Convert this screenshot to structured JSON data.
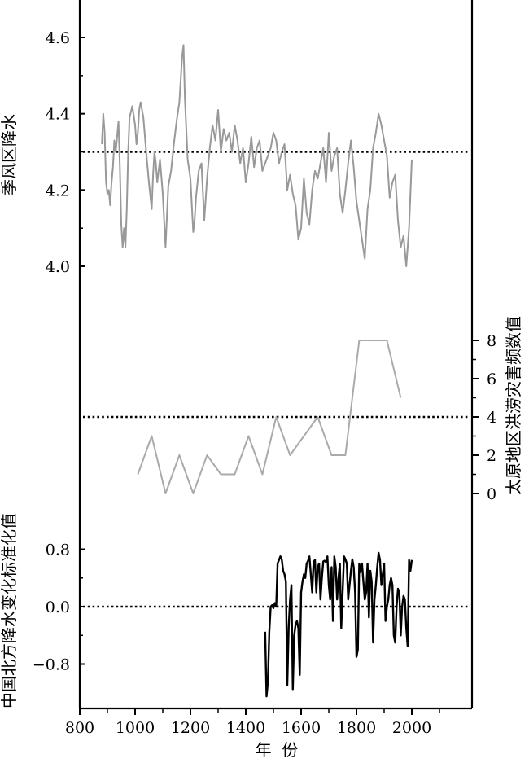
{
  "chart_data": [
    {
      "type": "line",
      "panel": "top",
      "ylabel": "季风区降水",
      "yticks": [
        "4.6",
        "4.4",
        "4.2",
        "4.0"
      ],
      "ylim": [
        4.0,
        4.6
      ],
      "reference_line": 4.3,
      "series": [
        {
          "color": "#999999",
          "x": [
            880,
            885,
            890,
            895,
            900,
            905,
            910,
            915,
            920,
            925,
            930,
            935,
            940,
            945,
            950,
            955,
            960,
            965,
            970,
            975,
            980,
            990,
            1000,
            1005,
            1010,
            1015,
            1020,
            1030,
            1040,
            1050,
            1060,
            1065,
            1070,
            1075,
            1080,
            1090,
            1100,
            1110,
            1120,
            1130,
            1140,
            1150,
            1160,
            1165,
            1170,
            1175,
            1180,
            1190,
            1200,
            1210,
            1215,
            1220,
            1230,
            1240,
            1250,
            1260,
            1270,
            1280,
            1290,
            1300,
            1310,
            1320,
            1330,
            1340,
            1350,
            1360,
            1370,
            1380,
            1390,
            1400,
            1410,
            1420,
            1430,
            1440,
            1450,
            1460,
            1470,
            1480,
            1490,
            1500,
            1510,
            1520,
            1530,
            1540,
            1550,
            1560,
            1570,
            1580,
            1590,
            1600,
            1610,
            1620,
            1630,
            1640,
            1650,
            1660,
            1670,
            1680,
            1690,
            1700,
            1710,
            1720,
            1730,
            1740,
            1750,
            1760,
            1770,
            1780,
            1790,
            1800,
            1810,
            1820,
            1830,
            1840,
            1850,
            1860,
            1870,
            1880,
            1890,
            1900,
            1910,
            1920,
            1930,
            1940,
            1950,
            1960,
            1970,
            1980,
            1990,
            2000
          ],
          "values": [
            4.32,
            4.4,
            4.35,
            4.22,
            4.19,
            4.2,
            4.16,
            4.22,
            4.26,
            4.33,
            4.3,
            4.34,
            4.38,
            4.26,
            4.11,
            4.05,
            4.1,
            4.05,
            4.15,
            4.3,
            4.39,
            4.42,
            4.37,
            4.32,
            4.35,
            4.41,
            4.43,
            4.39,
            4.3,
            4.22,
            4.15,
            4.24,
            4.3,
            4.27,
            4.22,
            4.28,
            4.19,
            4.05,
            4.21,
            4.25,
            4.32,
            4.38,
            4.43,
            4.49,
            4.55,
            4.58,
            4.44,
            4.28,
            4.23,
            4.09,
            4.12,
            4.18,
            4.25,
            4.27,
            4.12,
            4.23,
            4.31,
            4.37,
            4.33,
            4.41,
            4.3,
            4.36,
            4.33,
            4.35,
            4.3,
            4.37,
            4.33,
            4.27,
            4.31,
            4.22,
            4.27,
            4.34,
            4.26,
            4.31,
            4.33,
            4.25,
            4.27,
            4.29,
            4.31,
            4.35,
            4.33,
            4.27,
            4.3,
            4.32,
            4.2,
            4.24,
            4.19,
            4.16,
            4.07,
            4.1,
            4.23,
            4.14,
            4.11,
            4.2,
            4.25,
            4.23,
            4.27,
            4.31,
            4.22,
            4.35,
            4.25,
            4.29,
            4.31,
            4.19,
            4.14,
            4.2,
            4.27,
            4.33,
            4.26,
            4.17,
            4.12,
            4.07,
            4.02,
            4.15,
            4.2,
            4.31,
            4.35,
            4.4,
            4.37,
            4.33,
            4.29,
            4.18,
            4.22,
            4.24,
            4.12,
            4.05,
            4.08,
            4.0,
            4.1,
            4.28
          ]
        }
      ]
    },
    {
      "type": "line",
      "panel": "middle",
      "ylabel": "太原地区洪涝灾害频数值",
      "yticks": [
        "8",
        "6",
        "4",
        "2",
        "0"
      ],
      "ylim": [
        0,
        8
      ],
      "reference_line": 4,
      "series": [
        {
          "color": "#aaaaaa",
          "x": [
            1010,
            1060,
            1110,
            1160,
            1210,
            1260,
            1310,
            1360,
            1410,
            1460,
            1510,
            1560,
            1660,
            1710,
            1760,
            1810,
            1910,
            1960
          ],
          "values": [
            1,
            3,
            0,
            2,
            0,
            2,
            1,
            1,
            3,
            1,
            4,
            2,
            4,
            2,
            2,
            8,
            8,
            5
          ]
        }
      ]
    },
    {
      "type": "line",
      "panel": "bottom",
      "ylabel": "中国北方降水变化标准化值",
      "yticks": [
        "0.8",
        "0.0",
        "−0.8"
      ],
      "ylim": [
        -1.28,
        0.9
      ],
      "reference_line": 0.0,
      "series": [
        {
          "color": "#000000",
          "x": [
            1470,
            1475,
            1480,
            1485,
            1490,
            1495,
            1500,
            1505,
            1510,
            1515,
            1520,
            1525,
            1530,
            1535,
            1540,
            1545,
            1550,
            1555,
            1560,
            1565,
            1570,
            1575,
            1580,
            1585,
            1590,
            1595,
            1600,
            1605,
            1610,
            1615,
            1620,
            1625,
            1630,
            1635,
            1640,
            1645,
            1650,
            1655,
            1660,
            1665,
            1670,
            1675,
            1680,
            1685,
            1690,
            1695,
            1700,
            1705,
            1710,
            1715,
            1720,
            1725,
            1730,
            1735,
            1740,
            1745,
            1750,
            1755,
            1760,
            1765,
            1770,
            1775,
            1780,
            1785,
            1790,
            1795,
            1800,
            1805,
            1810,
            1815,
            1820,
            1825,
            1830,
            1835,
            1840,
            1845,
            1850,
            1855,
            1860,
            1865,
            1870,
            1875,
            1880,
            1885,
            1890,
            1895,
            1900,
            1905,
            1910,
            1915,
            1920,
            1925,
            1930,
            1935,
            1940,
            1945,
            1950,
            1955,
            1960,
            1965,
            1970,
            1975,
            1980,
            1985,
            1990,
            1995,
            2000
          ],
          "values": [
            -0.35,
            -1.25,
            -1.05,
            -0.35,
            0.0,
            0.02,
            -0.02,
            0.05,
            0.0,
            0.6,
            0.65,
            0.7,
            0.66,
            0.5,
            0.45,
            0.35,
            -1.1,
            -0.3,
            0.1,
            0.3,
            -1.15,
            -0.4,
            -0.25,
            -0.2,
            -0.3,
            -0.95,
            0.2,
            0.35,
            0.45,
            0.4,
            0.6,
            0.64,
            0.7,
            0.45,
            0.2,
            0.62,
            0.65,
            0.2,
            0.55,
            0.6,
            0.1,
            0.4,
            0.63,
            0.64,
            0.62,
            0.7,
            0.3,
            0.1,
            0.55,
            -0.2,
            0.7,
            0.55,
            0.1,
            0.4,
            0.6,
            -0.3,
            0.2,
            0.7,
            0.66,
            0.6,
            0.1,
            0.3,
            0.5,
            0.66,
            0.55,
            0.2,
            -0.7,
            -0.6,
            0.6,
            0.48,
            0.6,
            0.35,
            0.1,
            0.2,
            0.6,
            -0.15,
            0.5,
            0.35,
            -0.5,
            0.1,
            0.3,
            0.55,
            0.75,
            0.65,
            0.3,
            0.45,
            0.6,
            -0.2,
            0.0,
            0.1,
            0.3,
            0.4,
            0.3,
            -0.4,
            -0.5,
            0.0,
            0.25,
            0.2,
            -0.4,
            0.0,
            0.15,
            0.1,
            -0.3,
            -0.55,
            0.65,
            0.5,
            0.65
          ]
        }
      ]
    }
  ],
  "x_axis": {
    "title": "年  份",
    "ticks": [
      "800",
      "1000",
      "1200",
      "1400",
      "1600",
      "1800",
      "2000"
    ],
    "xlim": [
      800,
      2000
    ]
  }
}
